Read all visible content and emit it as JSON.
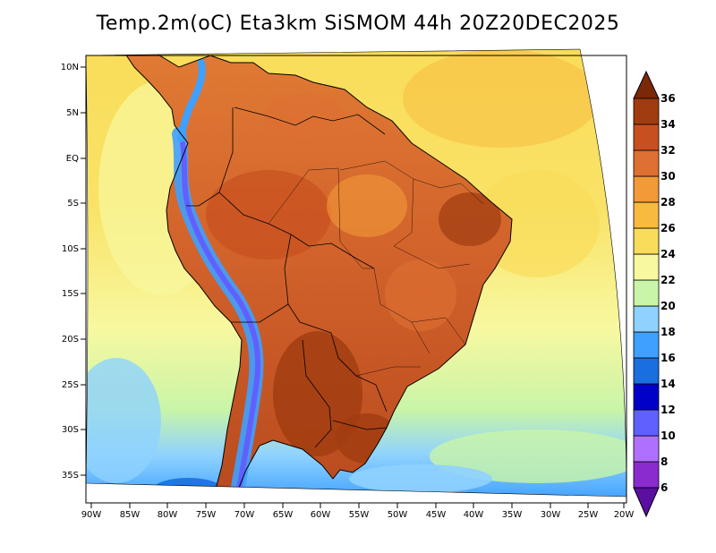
{
  "title": "Temp.2m(oC) Eta3km SiSMOM 44h 20Z20DEC2025",
  "map": {
    "variable": "2 m air temperature",
    "units": "oC",
    "region": "South America",
    "lon_range": [
      -90,
      -20
    ],
    "lat_range": [
      -38,
      12
    ],
    "lon_ticks": [
      "90W",
      "85W",
      "80W",
      "75W",
      "70W",
      "65W",
      "60W",
      "55W",
      "50W",
      "45W",
      "40W",
      "35W",
      "30W",
      "25W",
      "20W"
    ],
    "lat_ticks": [
      "10N",
      "5N",
      "EQ",
      "5S",
      "10S",
      "15S",
      "20S",
      "25S",
      "30S",
      "35S"
    ]
  },
  "colorbar": {
    "levels": [
      "6",
      "8",
      "10",
      "12",
      "14",
      "16",
      "18",
      "20",
      "22",
      "24",
      "26",
      "28",
      "30",
      "32",
      "34",
      "36"
    ],
    "colors": [
      "#5a0fa0",
      "#8a2bd0",
      "#b070ff",
      "#6060ff",
      "#0000c8",
      "#1a6fe0",
      "#3fa0ff",
      "#8fd2ff",
      "#c9f5a8",
      "#f8f8a0",
      "#f9dd5a",
      "#f8bb40",
      "#f29a38",
      "#de7032",
      "#c85020",
      "#a03c10",
      "#7a2808"
    ],
    "low_color": "#5a0fa0",
    "high_color": "#7a2808"
  },
  "colors": {
    "ocean_warm": "#f9dd5a",
    "ocean_mild": "#f8f8a0",
    "ocean_cool": "#8fd2ff",
    "land_hot": "#c85020",
    "land_warm": "#de7032",
    "andes": "#3fa0ff",
    "boundary": "#000000"
  }
}
